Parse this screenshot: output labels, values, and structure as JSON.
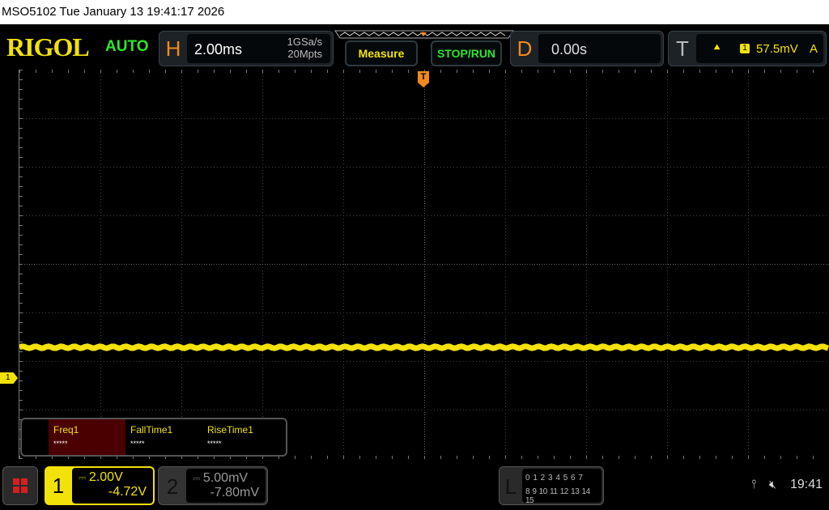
{
  "title_bar": {
    "text": "MSO5102  Tue January 13 19:41:17 2026"
  },
  "header": {
    "logo": "RIGOL",
    "trigger_mode": "AUTO",
    "horizontal": {
      "key": "H",
      "timebase": "2.00ms",
      "sample_rate": "1GSa/s",
      "memory_depth": "20Mpts"
    },
    "measure_label": "Measure",
    "stop_run_label": "STOP/RUN",
    "delay": {
      "key": "D",
      "value": "0.00s"
    },
    "trigger": {
      "key": "T",
      "source": "1",
      "level": "57.5mV",
      "mode": "A"
    }
  },
  "measurements": [
    {
      "name": "Freq1",
      "value": "*****",
      "selected": true
    },
    {
      "name": "FallTime1",
      "value": "*****"
    },
    {
      "name": "RiseTime1",
      "value": "*****"
    }
  ],
  "channels": [
    {
      "num": "1",
      "scale": "2.00V",
      "offset": "-4.72V",
      "active": true,
      "color": "#f2e20a"
    },
    {
      "num": "2",
      "scale": "5.00mV",
      "offset": "-7.80mV",
      "active": false,
      "color": "#8a8a8a"
    }
  ],
  "plot": {
    "ch1_marker": "1",
    "trigger_marker": "T",
    "trace_color": "#f2e20a"
  },
  "logic": {
    "key": "L",
    "row1": "0 1 2 3  4 5 6 7",
    "row2": "8 9 10 11 12 13 14 15"
  },
  "status": {
    "time": "19:41"
  }
}
